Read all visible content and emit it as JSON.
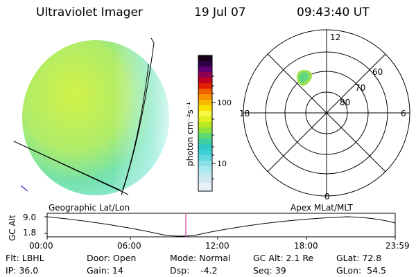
{
  "header": {
    "instrument": "Ultraviolet Imager",
    "date": "19 Jul 07",
    "time": "09:43:40 UT"
  },
  "colorbar": {
    "unit_label": "photon cm⁻²s⁻¹",
    "ticks": [
      "100",
      "10"
    ]
  },
  "polar_plot": {
    "mlt_labels": [
      "12",
      "18",
      "6",
      "0"
    ],
    "lat_labels": [
      "60",
      "70",
      "80"
    ]
  },
  "timeline": {
    "left_label": "Geographic Lat/Lon",
    "right_label": "Apex MLat/MLT",
    "y_axis_label": "GC Alt",
    "y_ticks": [
      "9.0",
      "1.8"
    ],
    "x_ticks": [
      "00:00",
      "06:00",
      "12:00",
      "18:00",
      "23:59"
    ]
  },
  "info": {
    "filter": "Flt: LBHL",
    "ip": "IP: 36.0",
    "door": "Door: Open",
    "gain": "Gain: 14",
    "mode": "Mode: Normal",
    "dsp": "Dsp:    -4.2",
    "gc_alt": "GC Alt: 2.1 Re",
    "seq": "Seq: 39",
    "glat": "GLat: 72.8",
    "glon": "GLon:  54.5"
  }
}
